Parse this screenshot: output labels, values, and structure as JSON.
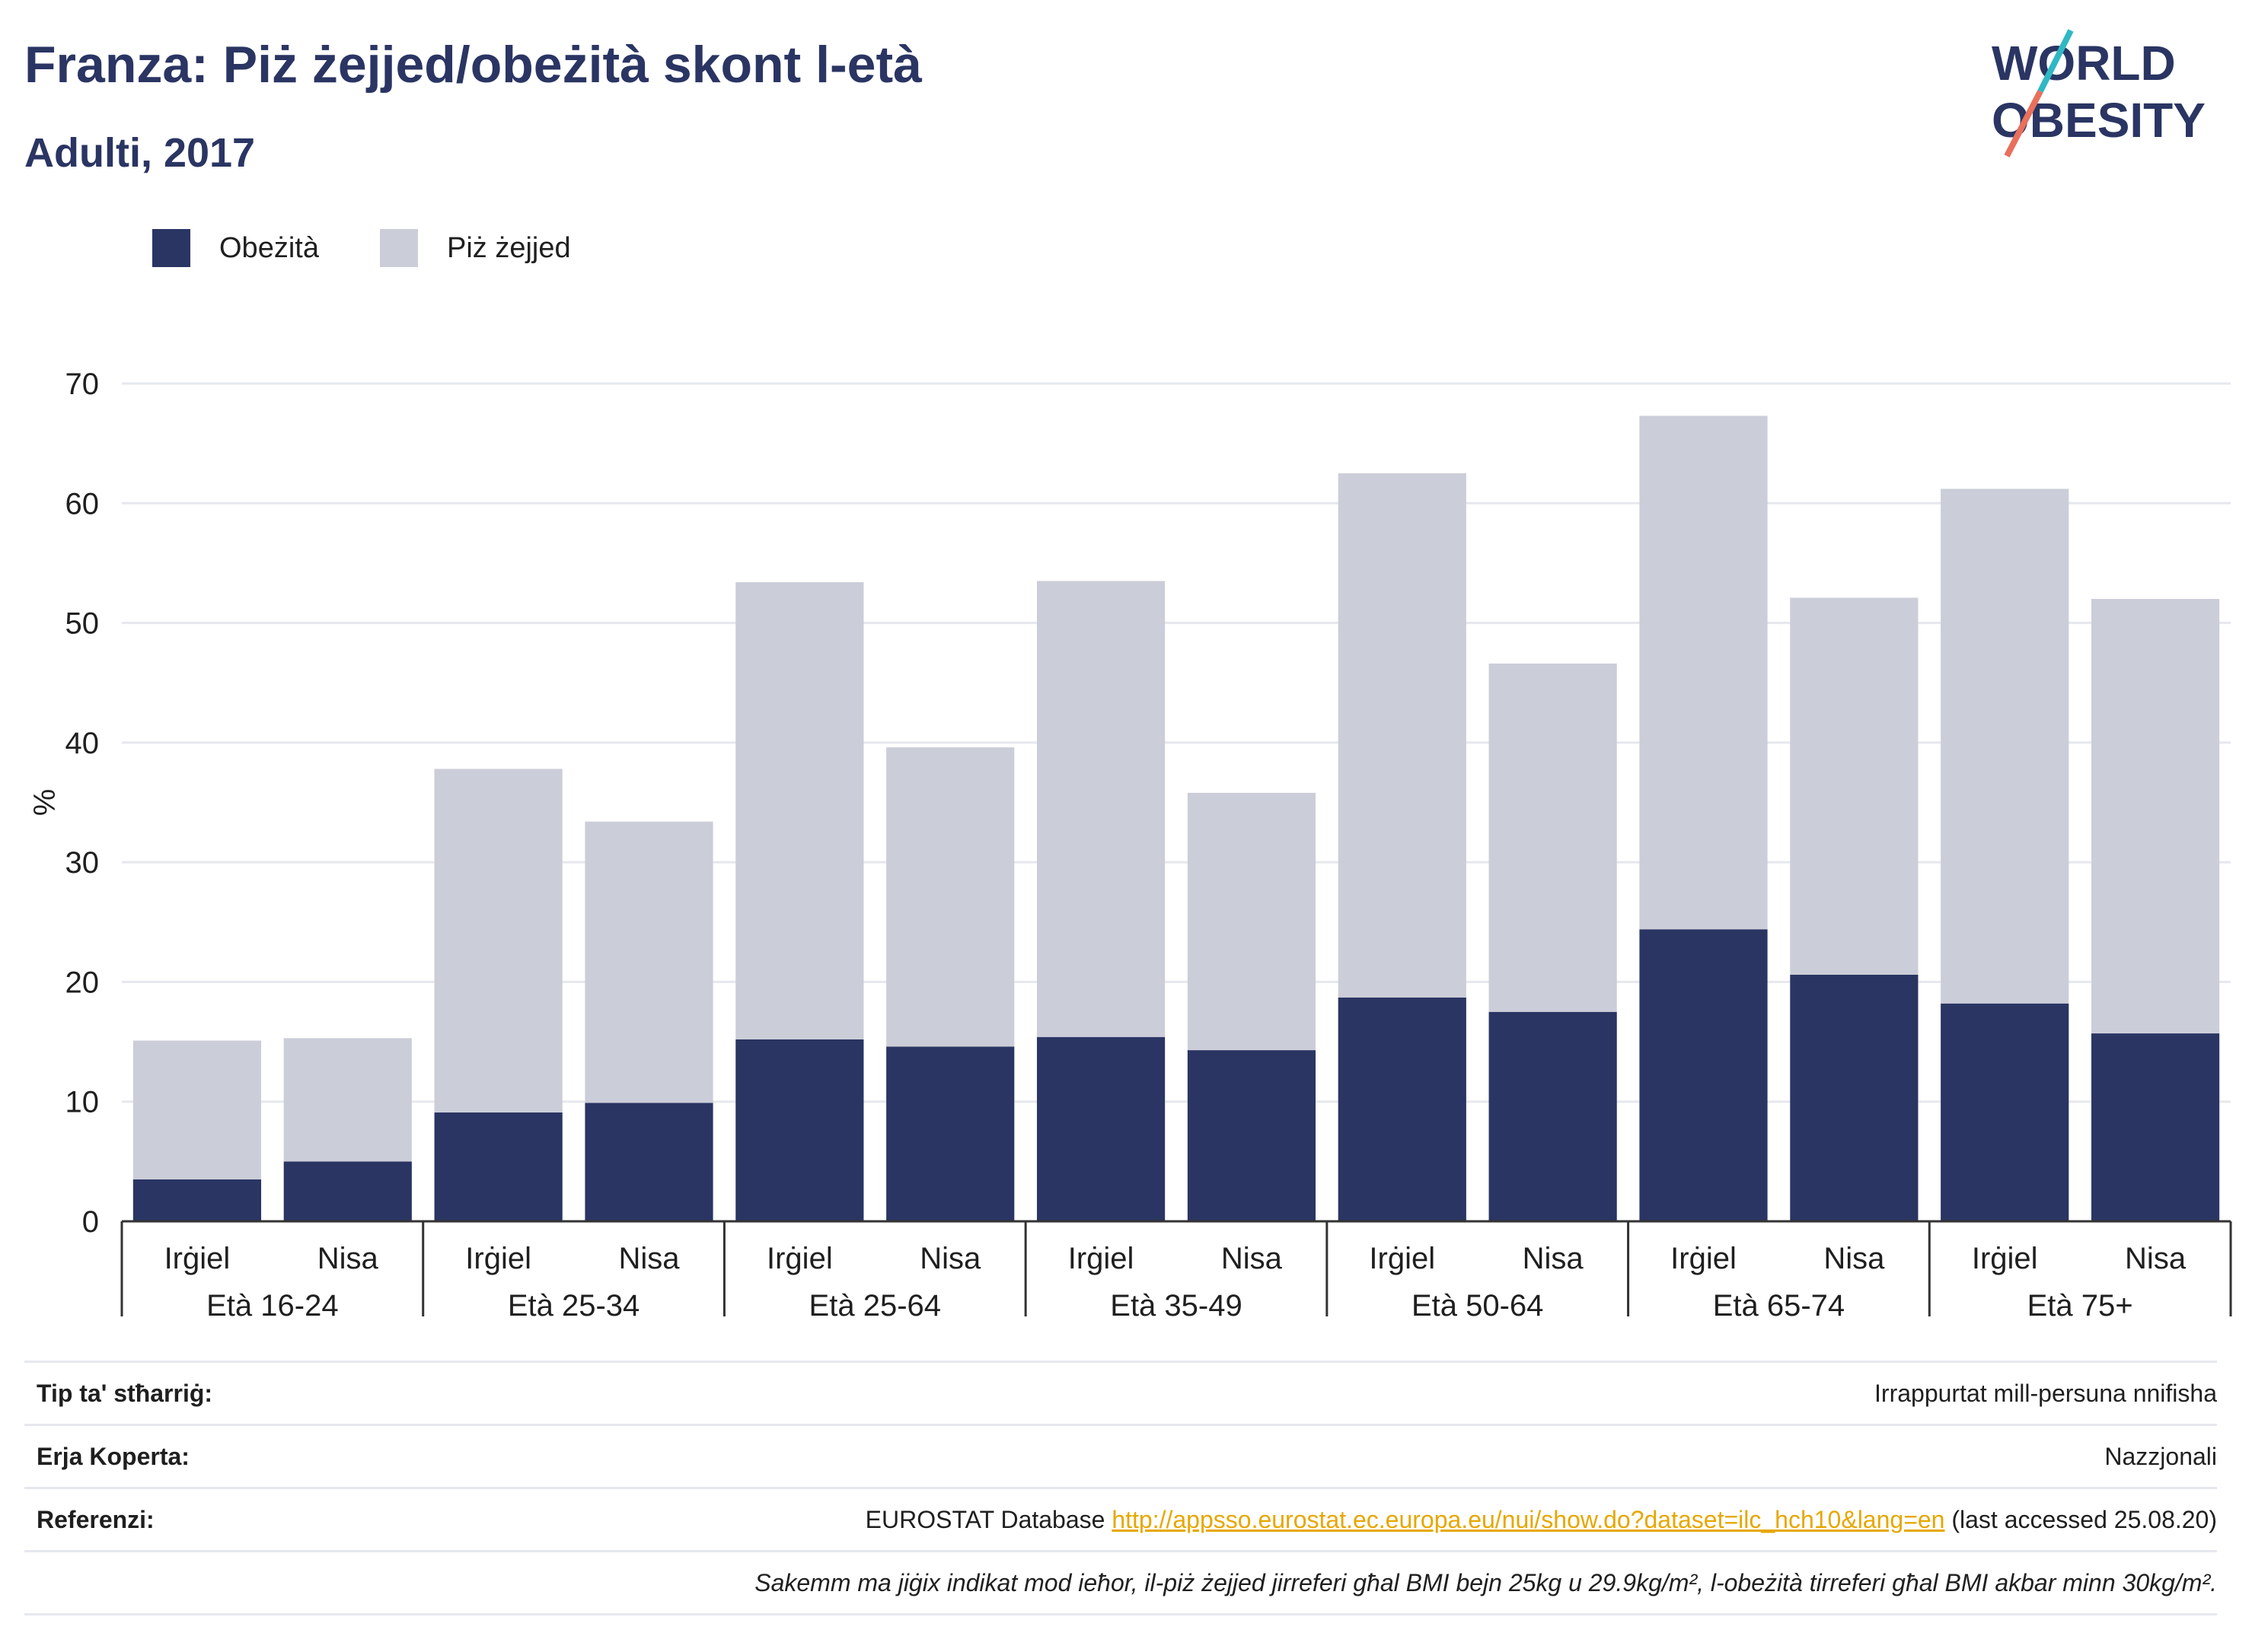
{
  "title": "Franza: Piż żejjed/obeżità skont l-età",
  "subtitle": "Adulti, 2017",
  "logo": {
    "line1": "WORLD",
    "line2": "OBESITY"
  },
  "colors": {
    "obesity": "#2a3563",
    "overweight": "#cbcdd8",
    "title": "#2a3563",
    "logo_teal": "#2fb8c4",
    "logo_coral": "#e8705c"
  },
  "legend": {
    "obesity": "Obeżità",
    "overweight": "Piż żejjed"
  },
  "chart_data": {
    "type": "bar",
    "stacked": true,
    "ylabel": "%",
    "ylim": [
      0,
      70
    ],
    "yticks": [
      0,
      10,
      20,
      30,
      40,
      50,
      60,
      70
    ],
    "grid": true,
    "legend_position": "top-left",
    "groups": [
      "Età 16-24",
      "Età 25-34",
      "Età 25-64",
      "Età 35-49",
      "Età 50-64",
      "Età 65-74",
      "Età 75+"
    ],
    "subcategories": [
      "Irġiel",
      "Nisa"
    ],
    "categories": [
      "Irġiel",
      "Nisa",
      "Irġiel",
      "Nisa",
      "Irġiel",
      "Nisa",
      "Irġiel",
      "Nisa",
      "Irġiel",
      "Nisa",
      "Irġiel",
      "Nisa",
      "Irġiel",
      "Nisa"
    ],
    "series": [
      {
        "name": "Obeżità",
        "values": [
          3.5,
          5.0,
          9.1,
          9.9,
          15.2,
          14.6,
          15.4,
          14.3,
          18.7,
          17.5,
          24.4,
          20.6,
          18.2,
          15.7
        ]
      },
      {
        "name": "Piż żejjed",
        "values": [
          11.6,
          10.3,
          28.7,
          23.5,
          38.2,
          25.0,
          38.1,
          21.5,
          43.8,
          29.1,
          42.9,
          31.5,
          43.0,
          36.3
        ]
      }
    ]
  },
  "table": {
    "rows": [
      {
        "label": "Tip ta' stħarriġ:",
        "value": "Irrappurtat mill-persuna nnifisha"
      },
      {
        "label": "Erja Koperta:",
        "value": "Nazzjonali"
      },
      {
        "label": "Referenzi:",
        "value_prefix": "EUROSTAT Database ",
        "link": "http://appsso.eurostat.ec.europa.eu/nui/show.do?dataset=ilc_hch10&lang=en",
        "value_suffix": " (last accessed 25.08.20)"
      }
    ],
    "note": "Sakemm ma jiġix indikat mod ieħor, il-piż żejjed jirreferi għal BMI bejn 25kg u 29.9kg/m², l-obeżità tirreferi għal BMI akbar minn 30kg/m²."
  }
}
